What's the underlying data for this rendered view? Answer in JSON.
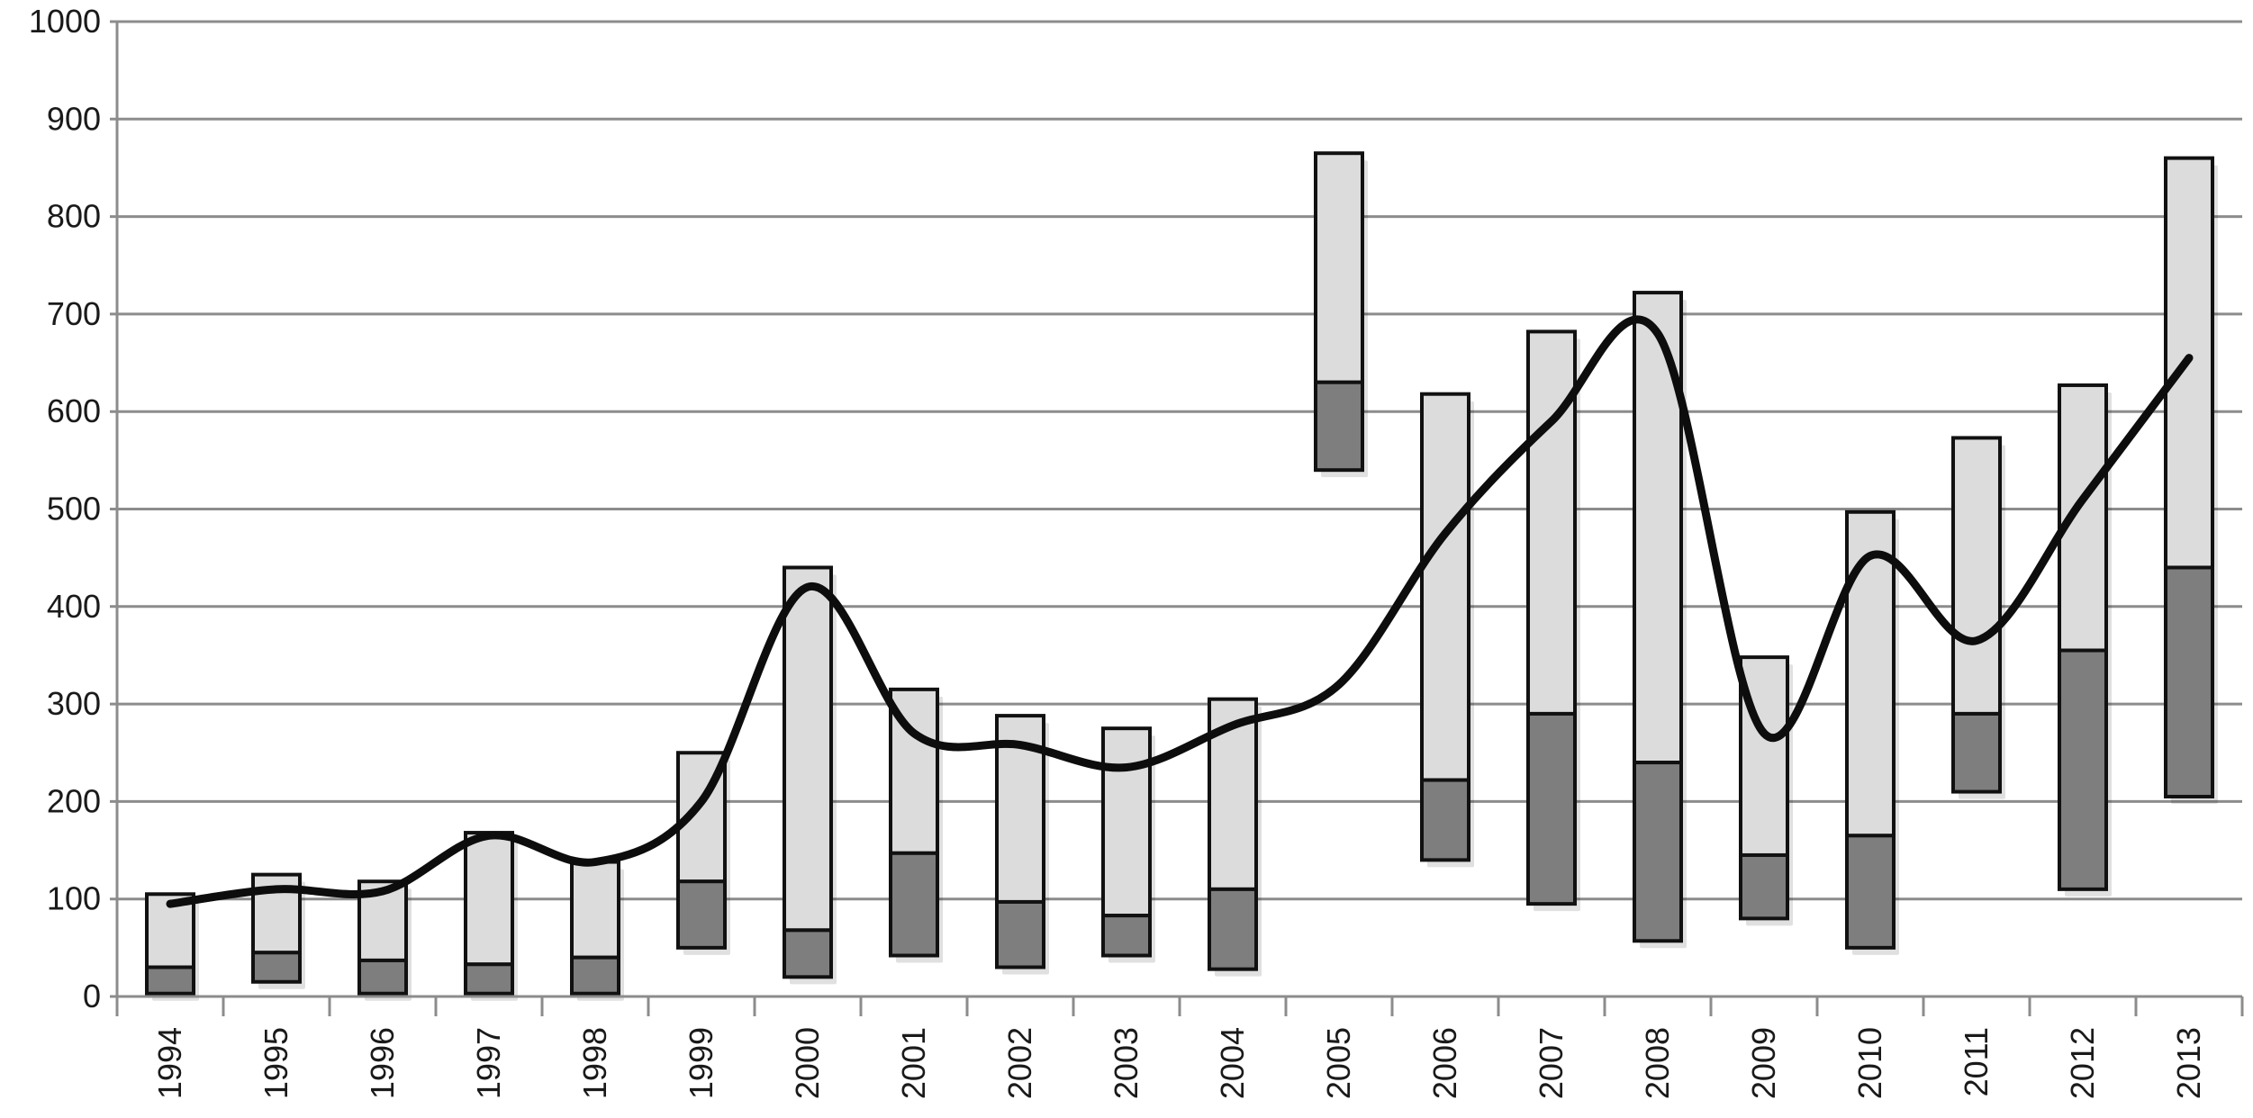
{
  "chart_data": {
    "type": "bar",
    "subtype": "floating-stacked-bar-with-trend-line",
    "title": "",
    "xlabel": "",
    "ylabel": "",
    "ylim": [
      0,
      1000
    ],
    "yticks": [
      0,
      100,
      200,
      300,
      400,
      500,
      600,
      700,
      800,
      900,
      1000
    ],
    "grid": true,
    "legend": "none",
    "categories": [
      "1994",
      "1995",
      "1996",
      "1997",
      "1998",
      "1999",
      "2000",
      "2001",
      "2002",
      "2003",
      "2004",
      "2005",
      "2006",
      "2007",
      "2008",
      "2009",
      "2010",
      "2011",
      "2012",
      "2013"
    ],
    "series": [
      {
        "role": "dark-segment",
        "color": "#7e7e7e",
        "bottom": [
          3,
          15,
          3,
          3,
          3,
          50,
          20,
          42,
          30,
          42,
          28,
          540,
          140,
          95,
          57,
          80,
          50,
          210,
          110,
          205
        ],
        "top": [
          30,
          45,
          37,
          33,
          40,
          118,
          68,
          147,
          97,
          83,
          110,
          630,
          222,
          290,
          240,
          145,
          165,
          290,
          355,
          440
        ]
      },
      {
        "role": "light-segment",
        "color": "#dcdcdc",
        "bottom": [
          30,
          45,
          37,
          33,
          40,
          118,
          68,
          147,
          97,
          83,
          110,
          630,
          222,
          290,
          240,
          145,
          165,
          290,
          355,
          440
        ],
        "top": [
          105,
          125,
          118,
          168,
          138,
          250,
          440,
          315,
          288,
          275,
          305,
          865,
          618,
          682,
          722,
          348,
          497,
          573,
          627,
          860
        ]
      },
      {
        "role": "trend-line",
        "type": "line",
        "color": "#0d0d0d",
        "x": [
          "1994",
          "1995",
          "1996",
          "1997",
          "1998",
          "1999",
          "2000",
          "2001",
          "2002",
          "2003",
          "2004",
          "2005",
          "2006",
          "2007",
          "2008",
          "2009",
          "2010",
          "2011",
          "2012",
          "2013"
        ],
        "values": [
          95,
          110,
          108,
          165,
          138,
          200,
          420,
          270,
          258,
          235,
          278,
          320,
          475,
          590,
          680,
          270,
          452,
          365,
          510,
          655
        ]
      }
    ]
  }
}
